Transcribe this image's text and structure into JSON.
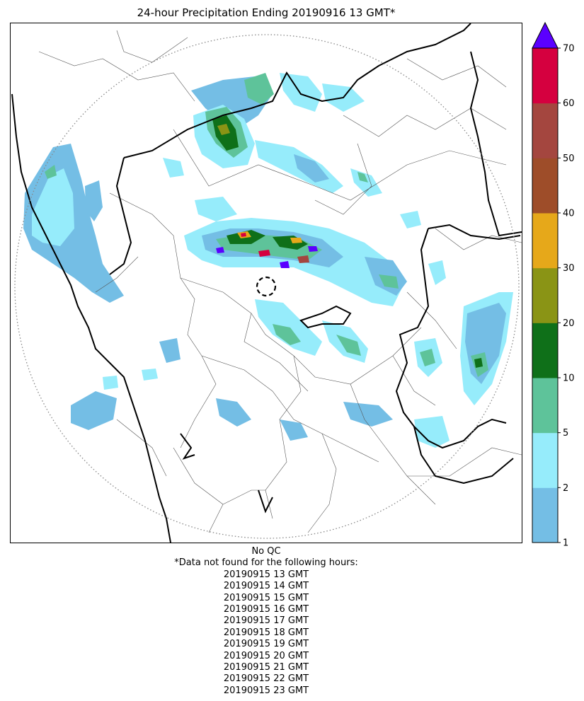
{
  "title": "24-hour Precipitation Ending 20190916 13 GMT*",
  "colorbar": {
    "levels": [
      1,
      2,
      5,
      10,
      20,
      30,
      40,
      50,
      60,
      70
    ],
    "tick_labels": [
      "1",
      "2",
      "5",
      "10",
      "20",
      "30",
      "40",
      "50",
      "60",
      "70"
    ],
    "colors": [
      "#74bee5",
      "#96ecfb",
      "#5ec39a",
      "#0f7019",
      "#8a9415",
      "#e6a81a",
      "#9e4d29",
      "#a4463f",
      "#d5003f"
    ],
    "extend_max_color": "#5b00ff"
  },
  "map": {
    "radar_range_ring": "dotted",
    "radar_center_marker": "dashed-circle",
    "boundary_colors": {
      "international": "#000000",
      "regional": "#555555"
    }
  },
  "notes": {
    "qc_status": "No QC",
    "missing_heading": "*Data not found for the following hours:",
    "missing_hours": [
      "20190915 13 GMT",
      "20190915 14 GMT",
      "20190915 15 GMT",
      "20190915 16 GMT",
      "20190915 17 GMT",
      "20190915 18 GMT",
      "20190915 19 GMT",
      "20190915 20 GMT",
      "20190915 21 GMT",
      "20190915 22 GMT",
      "20190915 23 GMT"
    ]
  }
}
